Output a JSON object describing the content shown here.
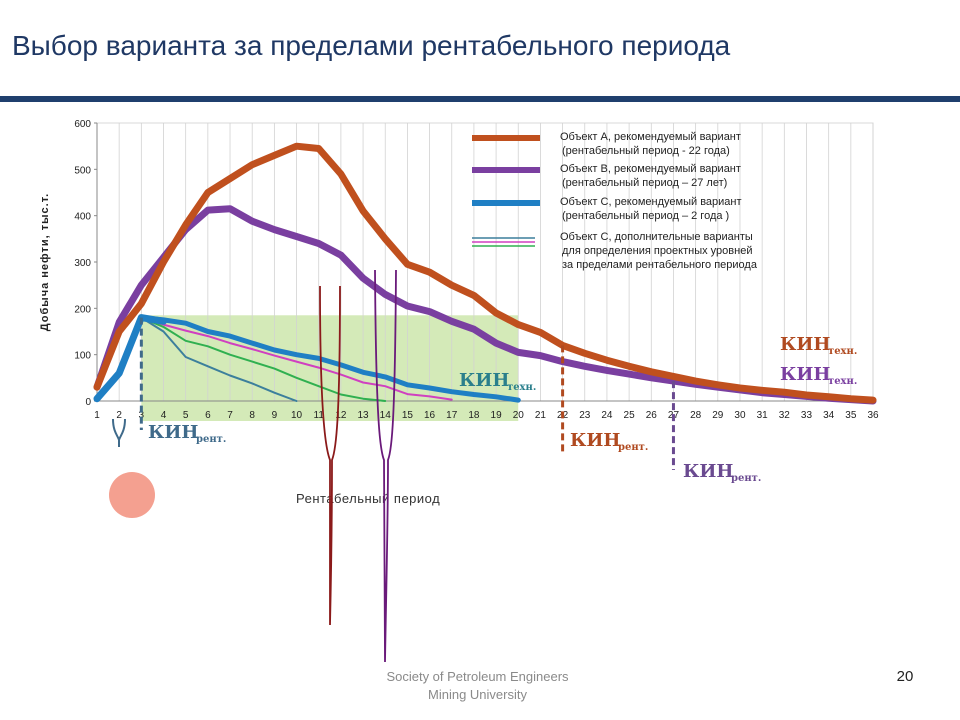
{
  "slide": {
    "title": "Выбор варианта за пределами рентабельного периода",
    "footer_line1": "Society of Petroleum Engineers",
    "footer_line2": "Mining University",
    "page_number": "20"
  },
  "chart_data": {
    "type": "line",
    "ylabel": "Добыча нефти, тыс.т.",
    "xlabel": "",
    "ylim": [
      0,
      600
    ],
    "xlim": [
      1,
      36
    ],
    "yticks": [
      0,
      100,
      200,
      300,
      400,
      500,
      600
    ],
    "xticks": [
      1,
      2,
      3,
      4,
      5,
      6,
      7,
      8,
      9,
      10,
      11,
      12,
      13,
      14,
      15,
      16,
      17,
      18,
      19,
      20,
      21,
      22,
      23,
      24,
      25,
      26,
      27,
      28,
      29,
      30,
      31,
      32,
      33,
      34,
      35,
      36
    ],
    "grid": "vertical",
    "legend_position": "top-right",
    "legend": [
      {
        "text": "Объект А, рекомендуемый вариант",
        "text2": "(рентабельный период - 22 года)",
        "color": "#c0501e"
      },
      {
        "text": "Объект В, рекомендуемый вариант",
        "text2": "(рентабельный период – 27 лет)",
        "color": "#7a3fa0"
      },
      {
        "text": "Объект С, рекомендуемый вариант",
        "text2": "(рентабельный период – 2 года )",
        "color": "#1f7fc4"
      },
      {
        "text": "Объект С, дополнительные варианты",
        "text2": "для определения проектных уровней",
        "text3": "за пределами рентабельного периода",
        "colors": [
          "#3c7f9c",
          "#d040c0",
          "#30b050"
        ]
      }
    ],
    "series": [
      {
        "name": "Объект А",
        "color": "#c0501e",
        "x": [
          1,
          2,
          3,
          4,
          5,
          6,
          7,
          8,
          9,
          10,
          11,
          12,
          13,
          14,
          15,
          16,
          17,
          18,
          19,
          20,
          21,
          22,
          23,
          24,
          25,
          26,
          27,
          28,
          29,
          30,
          31,
          32,
          33,
          34,
          35,
          36
        ],
        "y": [
          30,
          150,
          210,
          300,
          380,
          450,
          480,
          510,
          530,
          550,
          545,
          490,
          410,
          350,
          295,
          278,
          250,
          228,
          190,
          165,
          148,
          120,
          103,
          88,
          75,
          63,
          53,
          43,
          35,
          28,
          23,
          19,
          13,
          9,
          5,
          2
        ]
      },
      {
        "name": "Объект В",
        "color": "#7a3fa0",
        "x": [
          1,
          2,
          3,
          4,
          5,
          6,
          7,
          8,
          9,
          10,
          11,
          12,
          13,
          14,
          15,
          16,
          17,
          18,
          19,
          20,
          21,
          22,
          23,
          24,
          25,
          26,
          27,
          28,
          29,
          30,
          31,
          32,
          33,
          34,
          35,
          36
        ],
        "y": [
          30,
          170,
          250,
          310,
          370,
          412,
          415,
          388,
          370,
          355,
          340,
          315,
          265,
          230,
          205,
          193,
          172,
          155,
          125,
          105,
          98,
          85,
          75,
          66,
          58,
          50,
          43,
          36,
          30,
          24,
          18,
          14,
          10,
          6,
          3,
          0
        ]
      },
      {
        "name": "Объект С",
        "color": "#1f7fc4",
        "width": 7,
        "x": [
          1,
          2,
          3,
          4
        ],
        "y": [
          5,
          60,
          180,
          172
        ]
      },
      {
        "name": "Объект С var1",
        "color": "#3c7f9c",
        "width": 2,
        "x": [
          3,
          4,
          5,
          6,
          7,
          8,
          9,
          10
        ],
        "y": [
          180,
          150,
          95,
          75,
          55,
          38,
          18,
          0
        ]
      },
      {
        "name": "Объект С var2",
        "color": "#30b050",
        "width": 2,
        "x": [
          3,
          4,
          5,
          6,
          7,
          8,
          9,
          10,
          11,
          12,
          13,
          14
        ],
        "y": [
          180,
          160,
          130,
          118,
          100,
          85,
          70,
          50,
          32,
          14,
          5,
          0
        ]
      },
      {
        "name": "Объект С var3",
        "color": "#d040c0",
        "width": 2,
        "x": [
          3,
          4,
          5,
          6,
          7,
          8,
          9,
          10,
          11,
          12,
          13,
          14,
          15,
          16,
          17
        ],
        "y": [
          180,
          165,
          152,
          140,
          125,
          112,
          98,
          85,
          72,
          57,
          40,
          32,
          15,
          10,
          3
        ]
      },
      {
        "name": "Объект С var4",
        "color": "#1f7fc4",
        "width": 5,
        "x": [
          3,
          4,
          5,
          6,
          7,
          8,
          9,
          10,
          11,
          12,
          13,
          14,
          15,
          16,
          17,
          18,
          19,
          20
        ],
        "y": [
          180,
          175,
          168,
          150,
          140,
          125,
          110,
          100,
          92,
          78,
          62,
          52,
          35,
          28,
          20,
          14,
          9,
          2
        ]
      }
    ],
    "shaded_region": {
      "x": [
        3,
        20
      ],
      "y": [
        0,
        185
      ],
      "color": "#cfe8b0"
    },
    "shaded_label": "Рентабельный период",
    "markers": [
      {
        "x": 3,
        "y": 180,
        "color": "#3f6a8a",
        "label": "КИН",
        "sub": "рент."
      },
      {
        "x": 22,
        "y": 120,
        "color": "#b04a20",
        "label": "КИН",
        "sub": "рент."
      },
      {
        "x": 27,
        "y": 43,
        "color": "#6a4a90",
        "label": "КИН",
        "sub": "рент."
      }
    ],
    "annotations": [
      {
        "label": "КИН",
        "sub": "техн.",
        "color": "#2a7f8c",
        "anchor": "end-of-C"
      },
      {
        "label": "КИН",
        "sub": "техн.",
        "color": "#b04a20",
        "anchor": "end-of-A"
      },
      {
        "label": "КИН",
        "sub": "техн.",
        "color": "#7a3fa0",
        "anchor": "end-of-B"
      }
    ]
  }
}
